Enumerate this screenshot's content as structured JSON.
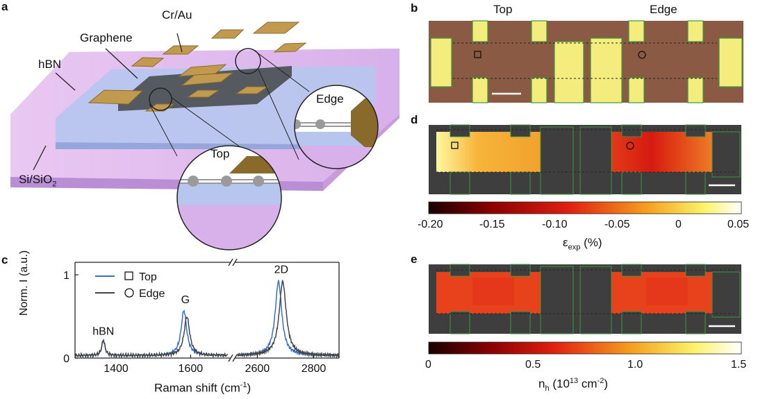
{
  "panels": {
    "a": "a",
    "b": "b",
    "c": "c",
    "d": "d",
    "e": "e"
  },
  "schematic": {
    "labels": {
      "cr_au": "Cr/Au",
      "graphene": "Graphene",
      "hbn": "hBN",
      "substrate_main": "Si/SiO",
      "substrate_sub": "2",
      "edge": "Edge",
      "top": "Top"
    }
  },
  "optical": {
    "top": "Top",
    "edge": "Edge"
  },
  "colorbar_strain": {
    "ticks": [
      "-0.20",
      "-0.15",
      "-0.10",
      "-0.05",
      "0",
      "0.05"
    ],
    "label_main": "ε",
    "label_sub": "exp",
    "label_unit": "(%)"
  },
  "colorbar_density": {
    "ticks": [
      "0",
      "0.5",
      "1.0",
      "1.5"
    ],
    "label_main": "n",
    "label_sub": "h",
    "label_unit": "(10",
    "label_exp1": "13",
    "label_cm": " cm",
    "label_exp2": "-2",
    "label_close": ")"
  },
  "chart_data": {
    "type": "line",
    "xlabel": "Raman shift (cm-1)",
    "xlabel_main": "Raman shift (cm",
    "xlabel_sup": "-1",
    "xlabel_close": ")",
    "ylabel": "Norm. I (a.u.)",
    "x_ticks": [
      "1400",
      "1600",
      "2600",
      "2800"
    ],
    "y_ticks": [
      "0",
      "1"
    ],
    "xlim_left": [
      1290,
      1700
    ],
    "xlim_right": [
      2530,
      2890
    ],
    "ylim": [
      0,
      1.15
    ],
    "annotations": [
      "hBN",
      "G",
      "2D"
    ],
    "legend": [
      "Top",
      "Edge"
    ],
    "colors": {
      "Top": "#2f6fd6",
      "Edge": "#444444"
    },
    "series": [
      {
        "name": "Top",
        "peaks": [
          [
            1366,
            0.18,
            5
          ],
          [
            1582,
            0.54,
            9
          ],
          [
            2675,
            0.89,
            14
          ]
        ]
      },
      {
        "name": "Edge",
        "peaks": [
          [
            1366,
            0.19,
            5
          ],
          [
            1590,
            0.47,
            9
          ],
          [
            2690,
            0.89,
            15
          ]
        ]
      }
    ]
  }
}
